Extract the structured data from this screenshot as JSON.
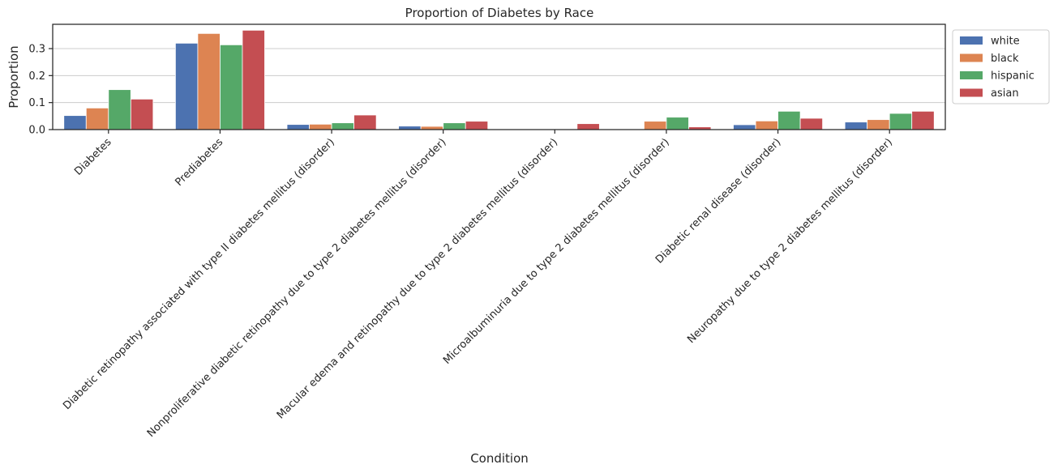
{
  "chart_data": {
    "type": "bar",
    "title": "Proportion of Diabetes by Race",
    "xlabel": "Condition",
    "ylabel": "Proportion",
    "ylim": [
      0,
      0.39
    ],
    "yticks": [
      "0.0",
      "0.1",
      "0.2",
      "0.3"
    ],
    "ytick_values": [
      0,
      0.1,
      0.2,
      0.3
    ],
    "grid": "horizontal",
    "legend_position": "outside-top-right",
    "categories": [
      "Diabetes",
      "Prediabetes",
      "Diabetic retinopathy associated with type II diabetes mellitus (disorder)",
      "Nonproliferative diabetic retinopathy due to type 2 diabetes mellitus (disorder)",
      "Macular edema and retinopathy due to type 2 diabetes mellitus (disorder)",
      "Microalbuminuria due to type 2 diabetes mellitus (disorder)",
      "Diabetic renal disease (disorder)",
      "Neuropathy due to type 2 diabetes mellitus (disorder)"
    ],
    "series": [
      {
        "name": "white",
        "color": "#4c72b0",
        "values": [
          0.052,
          0.32,
          0.019,
          0.013,
          0.0,
          0.0,
          0.018,
          0.028
        ]
      },
      {
        "name": "black",
        "color": "#dd8452",
        "values": [
          0.08,
          0.356,
          0.02,
          0.012,
          0.0,
          0.031,
          0.032,
          0.037
        ]
      },
      {
        "name": "hispanic",
        "color": "#55a868",
        "values": [
          0.148,
          0.314,
          0.025,
          0.025,
          0.0,
          0.046,
          0.068,
          0.06
        ]
      },
      {
        "name": "asian",
        "color": "#c44e52",
        "values": [
          0.113,
          0.368,
          0.054,
          0.031,
          0.022,
          0.01,
          0.042,
          0.068
        ]
      }
    ]
  }
}
